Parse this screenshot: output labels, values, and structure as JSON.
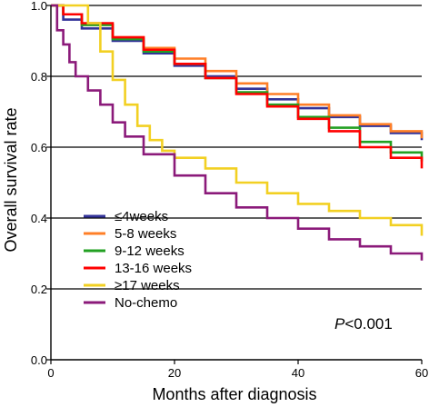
{
  "chart_data": {
    "type": "line",
    "step": true,
    "title": "",
    "xlabel": "Months after diagnosis",
    "ylabel": "Overall survival rate",
    "xlim": [
      0,
      60
    ],
    "ylim": [
      0.0,
      1.0
    ],
    "xticks": [
      0,
      20,
      40,
      60
    ],
    "xtick_labels": [
      "0",
      "20",
      "40",
      "60"
    ],
    "yticks": [
      0.0,
      0.2,
      0.4,
      0.6,
      0.8,
      1.0
    ],
    "ytick_labels": [
      "0.0",
      "0.2",
      "0.4",
      "0.6",
      "0.8",
      "1.0"
    ],
    "grid": "horizontal",
    "legend_position": "bottom-left",
    "annotation": {
      "prefix": "P",
      "text": "<0.001"
    },
    "series": [
      {
        "name": "≤4weeks",
        "color": "#333399",
        "x": [
          0,
          2,
          5,
          10,
          15,
          20,
          25,
          30,
          35,
          40,
          45,
          50,
          55,
          60
        ],
        "y": [
          1.0,
          0.96,
          0.935,
          0.9,
          0.865,
          0.83,
          0.8,
          0.765,
          0.735,
          0.71,
          0.685,
          0.66,
          0.64,
          0.62
        ]
      },
      {
        "name": "5-8 weeks",
        "color": "#FF7F27",
        "x": [
          0,
          2,
          5,
          10,
          15,
          20,
          25,
          30,
          35,
          40,
          45,
          50,
          55,
          60
        ],
        "y": [
          1.0,
          0.975,
          0.945,
          0.91,
          0.88,
          0.85,
          0.815,
          0.78,
          0.75,
          0.72,
          0.69,
          0.665,
          0.645,
          0.625
        ]
      },
      {
        "name": "9-12 weeks",
        "color": "#22A022",
        "x": [
          0,
          2,
          5,
          10,
          15,
          20,
          25,
          30,
          35,
          40,
          45,
          50,
          55,
          60
        ],
        "y": [
          1.0,
          0.975,
          0.945,
          0.905,
          0.87,
          0.835,
          0.795,
          0.755,
          0.72,
          0.685,
          0.655,
          0.615,
          0.585,
          0.56
        ]
      },
      {
        "name": "13-16 weeks",
        "color": "#FF0000",
        "x": [
          0,
          2,
          5,
          10,
          15,
          20,
          25,
          30,
          35,
          40,
          45,
          50,
          55,
          60
        ],
        "y": [
          1.0,
          0.975,
          0.95,
          0.91,
          0.875,
          0.835,
          0.795,
          0.75,
          0.715,
          0.68,
          0.645,
          0.6,
          0.57,
          0.54
        ]
      },
      {
        "name": "≥17 weeks",
        "color": "#F2D022",
        "x": [
          0,
          4,
          6,
          8,
          10,
          12,
          14,
          16,
          18,
          20,
          25,
          30,
          35,
          40,
          45,
          50,
          55,
          60
        ],
        "y": [
          1.0,
          1.0,
          0.95,
          0.87,
          0.79,
          0.72,
          0.66,
          0.62,
          0.59,
          0.57,
          0.54,
          0.5,
          0.47,
          0.44,
          0.42,
          0.4,
          0.38,
          0.35
        ]
      },
      {
        "name": "No-chemo",
        "color": "#8B1A7A",
        "x": [
          0,
          1,
          2,
          3,
          4,
          6,
          8,
          10,
          12,
          15,
          20,
          25,
          30,
          35,
          40,
          45,
          50,
          55,
          60
        ],
        "y": [
          1.0,
          0.93,
          0.89,
          0.84,
          0.8,
          0.76,
          0.72,
          0.67,
          0.63,
          0.58,
          0.52,
          0.47,
          0.43,
          0.4,
          0.37,
          0.34,
          0.32,
          0.3,
          0.28
        ]
      }
    ]
  }
}
